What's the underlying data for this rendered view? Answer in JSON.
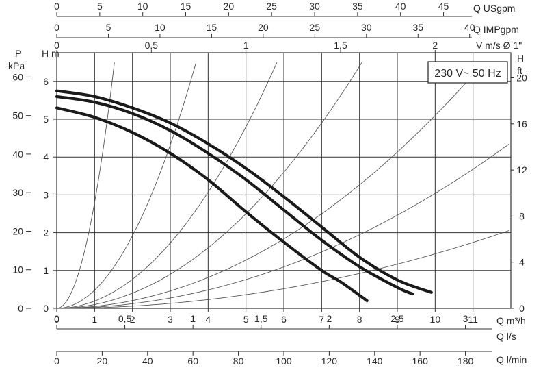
{
  "chart_data": {
    "type": "line",
    "title": "",
    "annotation": "230 V~ 50 Hz",
    "xlabel": "Q m³/h",
    "xlim": [
      0,
      12
    ],
    "x_ticks": [
      "0",
      "1",
      "2",
      "3",
      "4",
      "5",
      "6",
      "7",
      "8",
      "9",
      "10",
      "11"
    ],
    "ylabel": "H m",
    "ylim": [
      0,
      6
    ],
    "y_ticks": [
      "0",
      "1",
      "2",
      "3",
      "4",
      "5",
      "6"
    ],
    "grid": true,
    "secondary_axes": {
      "top_usgpm": {
        "label": "Q USgpm",
        "ticks": [
          "0",
          "5",
          "10",
          "15",
          "20",
          "25",
          "30",
          "35",
          "40",
          "45"
        ],
        "per_m3h": 4.403
      },
      "top_impgpm": {
        "label": "Q IMPgpm",
        "ticks": [
          "0",
          "5",
          "10",
          "15",
          "20",
          "25",
          "30",
          "35",
          "40"
        ],
        "per_m3h": 3.666
      },
      "top_velocity": {
        "label": "V m/s Ø 1\"",
        "ticks": [
          "0",
          "0,5",
          "1",
          "1,5",
          "2"
        ],
        "per_m3h": 0.2
      },
      "left_pressure": {
        "label_line1": "P",
        "label_line2": "kPa",
        "ticks": [
          "0",
          "10",
          "20",
          "30",
          "40",
          "50",
          "60"
        ],
        "per_m": 9.81
      },
      "right_feet": {
        "label_line1": "H",
        "label_line2": "ft",
        "ticks": [
          "0",
          "4",
          "8",
          "12",
          "16",
          "20"
        ],
        "per_m": 3.281
      },
      "bottom_ls": {
        "label": "Q l/s",
        "ticks": [
          "0",
          "0,5",
          "1",
          "1,5",
          "2",
          "2,5",
          "3"
        ],
        "per_m3h": 0.2778
      },
      "bottom_lmin": {
        "label": "Q l/min",
        "ticks": [
          "0",
          "20",
          "40",
          "60",
          "80",
          "100",
          "120",
          "140",
          "160",
          "180"
        ],
        "per_m3h": 16.667
      }
    },
    "series": [
      {
        "values": [
          [
            0,
            5.75
          ],
          [
            1,
            5.6
          ],
          [
            2,
            5.3
          ],
          [
            3,
            4.9
          ],
          [
            4,
            4.35
          ],
          [
            5,
            3.7
          ],
          [
            6,
            2.95
          ],
          [
            7,
            2.15
          ],
          [
            8,
            1.35
          ],
          [
            9,
            0.75
          ],
          [
            9.9,
            0.42
          ]
        ]
      },
      {
        "values": [
          [
            0,
            5.6
          ],
          [
            1,
            5.45
          ],
          [
            2,
            5.15
          ],
          [
            3,
            4.7
          ],
          [
            4,
            4.1
          ],
          [
            5,
            3.4
          ],
          [
            6,
            2.6
          ],
          [
            7,
            1.8
          ],
          [
            8,
            1.1
          ],
          [
            9,
            0.55
          ],
          [
            9.4,
            0.38
          ]
        ]
      },
      {
        "values": [
          [
            0,
            5.3
          ],
          [
            1,
            5.05
          ],
          [
            2,
            4.65
          ],
          [
            3,
            4.1
          ],
          [
            4,
            3.4
          ],
          [
            5,
            2.55
          ],
          [
            6,
            1.75
          ],
          [
            7,
            1.0
          ],
          [
            7.5,
            0.7
          ],
          [
            8.2,
            0.2
          ]
        ]
      }
    ],
    "system_curve_coefficients": [
      2.8,
      0.48,
      0.192,
      0.1,
      0.051,
      0.0304,
      0.0144
    ]
  }
}
